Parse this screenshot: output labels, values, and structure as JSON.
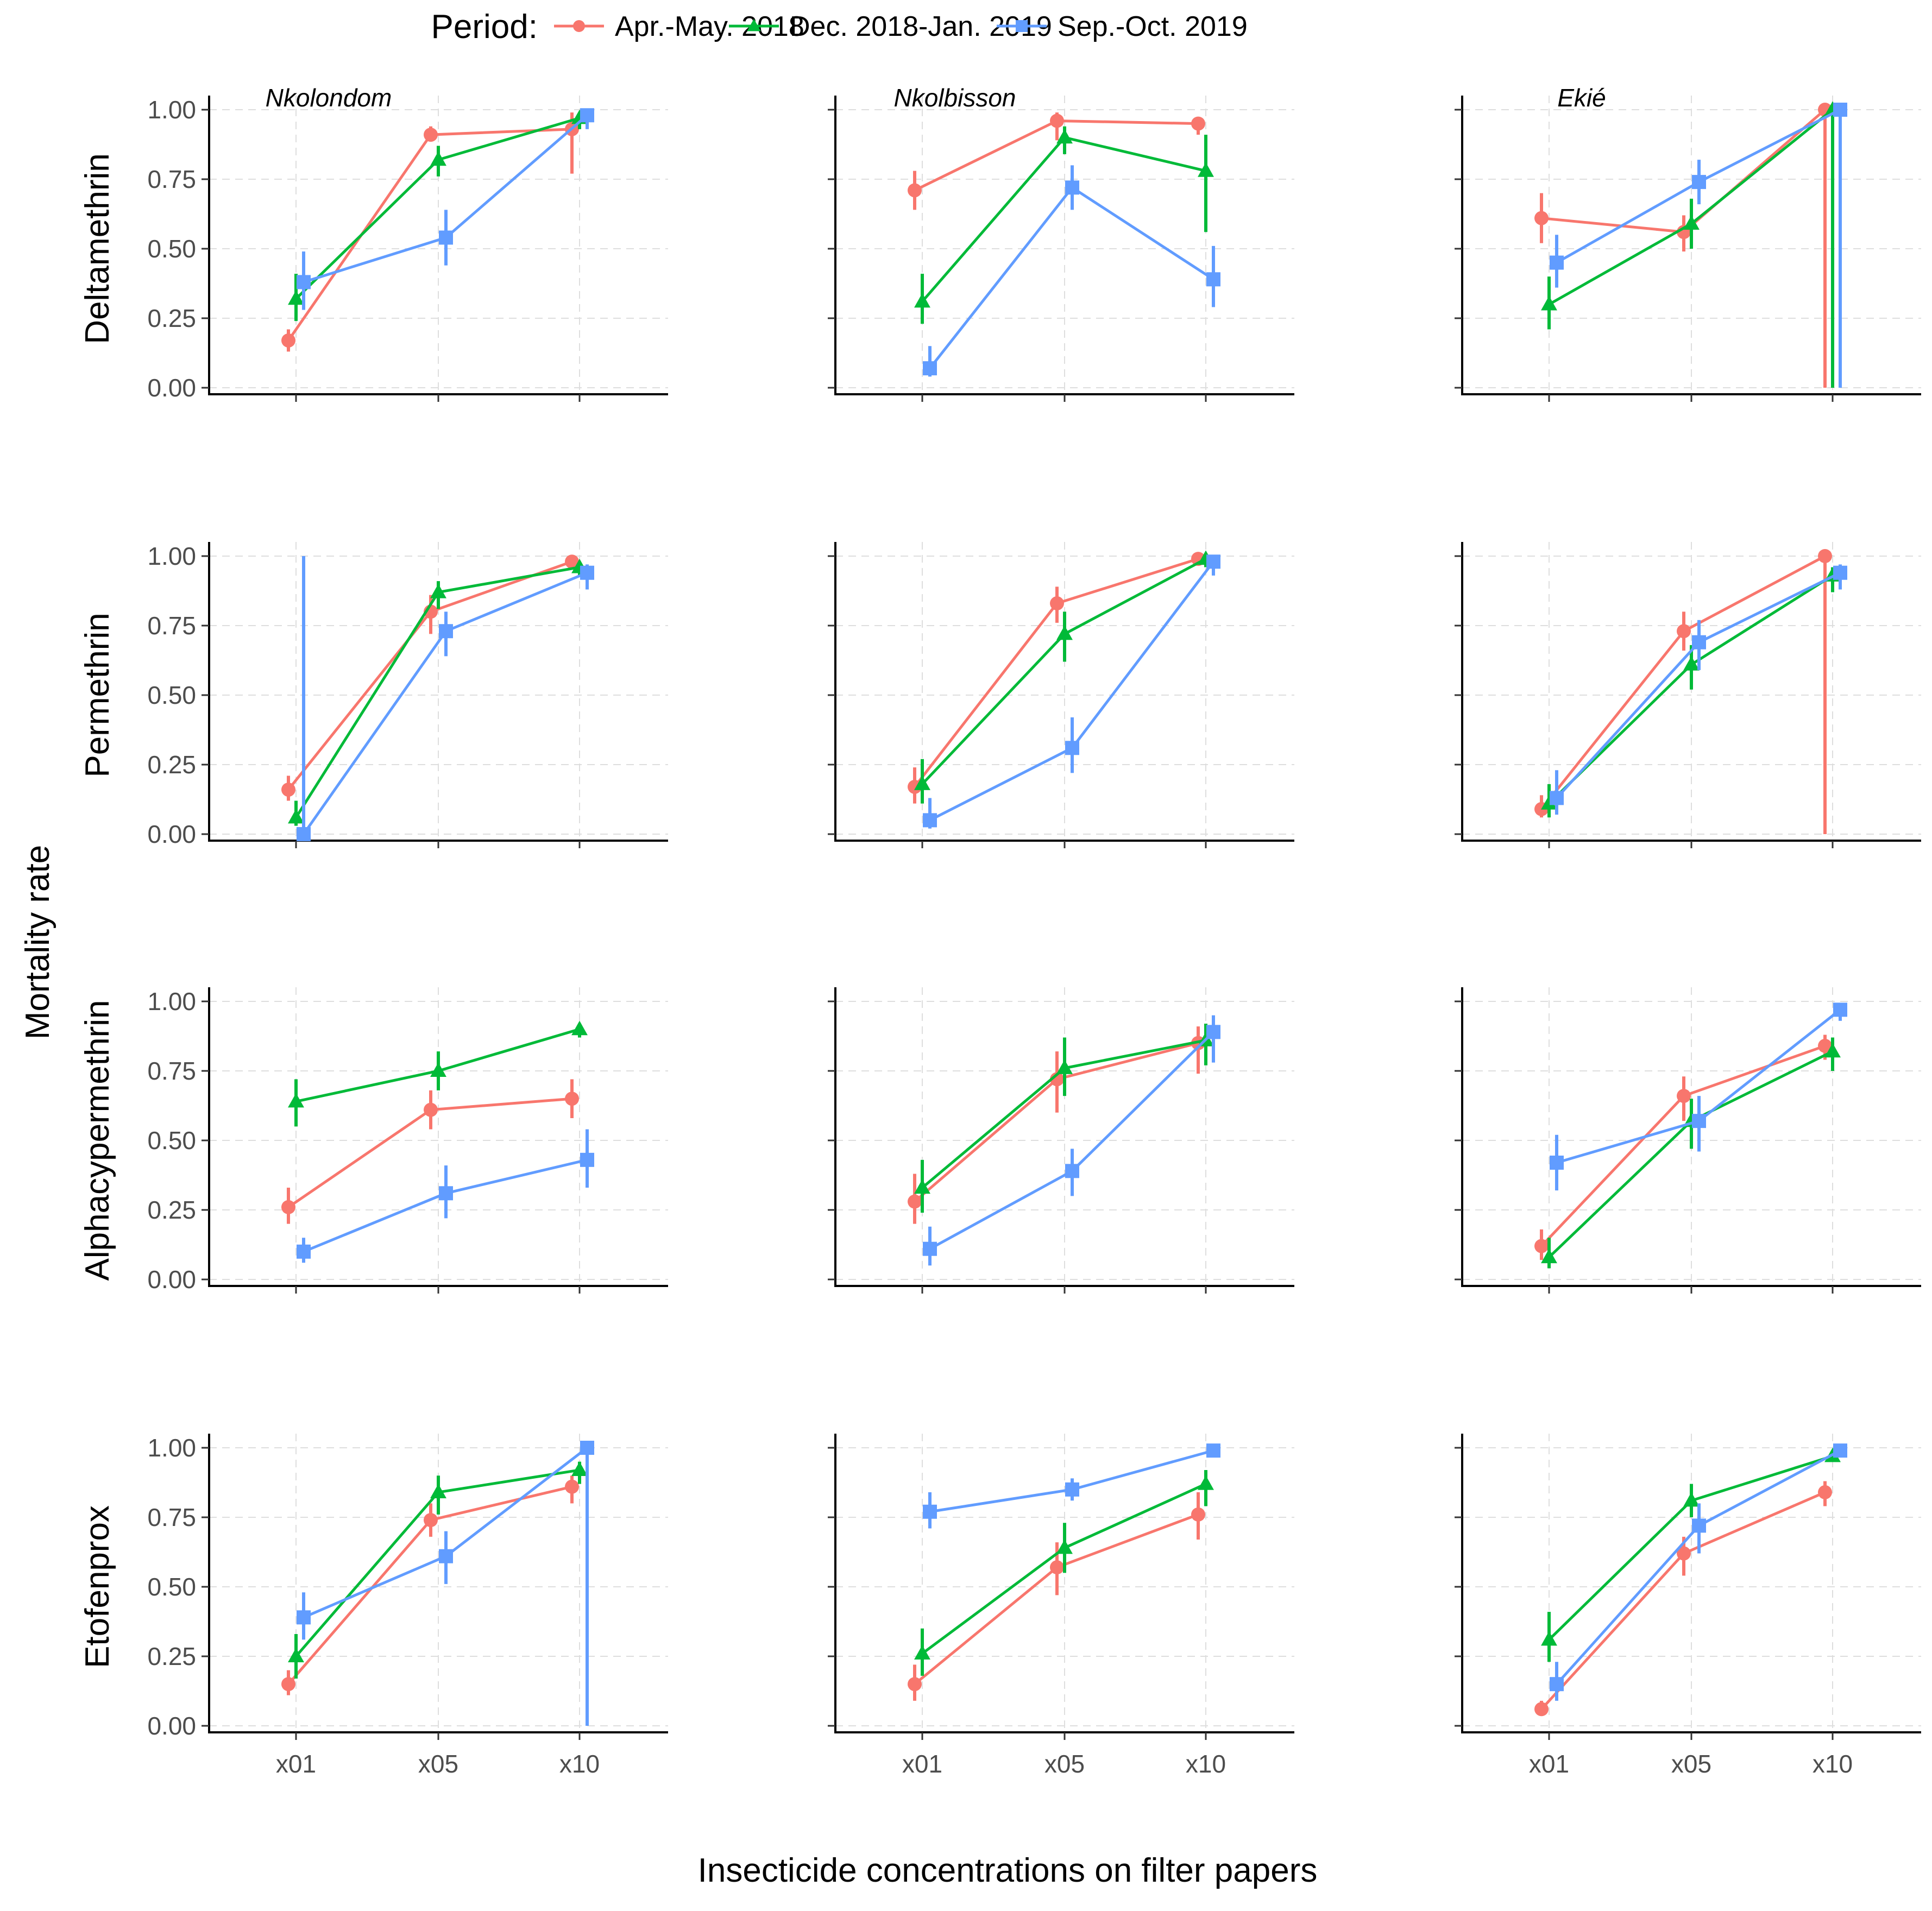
{
  "chart_data": {
    "type": "line",
    "legend": {
      "title": "Period:",
      "position": "top",
      "entries": [
        {
          "label": "Apr.-May. 2018",
          "color": "#F8766D",
          "shape": "circle"
        },
        {
          "label": "Dec. 2018-Jan. 2019",
          "color": "#00BA38",
          "shape": "triangle"
        },
        {
          "label": "Sep.-Oct. 2019",
          "color": "#619CFF",
          "shape": "square"
        }
      ]
    },
    "xlabel": "Insecticide concentrations on filter papers",
    "ylabel": "Mortality rate",
    "categories": [
      "x01",
      "x05",
      "x10"
    ],
    "ylim": [
      0,
      1
    ],
    "yticks": [
      "0.00",
      "0.25",
      "0.50",
      "0.75",
      "1.00"
    ],
    "columns": [
      "Nkolondom",
      "Nkolbisson",
      "Ekié"
    ],
    "rows": [
      "Deltamethrin",
      "Permethrin",
      "Alphacypermethrin",
      "Etofenprox"
    ],
    "panels": [
      {
        "row": "Deltamethrin",
        "column": "Nkolondom",
        "series": [
          {
            "name": "Apr.-May. 2018",
            "values": [
              0.17,
              0.91,
              0.93
            ],
            "lower": [
              0.13,
              0.89,
              0.77
            ],
            "upper": [
              0.21,
              0.94,
              0.99
            ]
          },
          {
            "name": "Dec. 2018-Jan. 2019",
            "values": [
              0.32,
              0.82,
              0.97
            ],
            "lower": [
              0.24,
              0.76,
              0.93
            ],
            "upper": [
              0.41,
              0.87,
              0.99
            ]
          },
          {
            "name": "Sep.-Oct. 2019",
            "values": [
              0.38,
              0.54,
              0.98
            ],
            "lower": [
              0.28,
              0.44,
              0.93
            ],
            "upper": [
              0.49,
              0.64,
              0.99
            ]
          }
        ]
      },
      {
        "row": "Deltamethrin",
        "column": "Nkolbisson",
        "series": [
          {
            "name": "Apr.-May. 2018",
            "values": [
              0.71,
              0.96,
              0.95
            ],
            "lower": [
              0.64,
              0.89,
              0.91
            ],
            "upper": [
              0.78,
              0.99,
              0.97
            ]
          },
          {
            "name": "Dec. 2018-Jan. 2019",
            "values": [
              0.31,
              0.9,
              0.78
            ],
            "lower": [
              0.23,
              0.84,
              0.56
            ],
            "upper": [
              0.41,
              0.94,
              0.91
            ]
          },
          {
            "name": "Sep.-Oct. 2019",
            "values": [
              0.07,
              0.72,
              0.39
            ],
            "lower": [
              0.04,
              0.64,
              0.29
            ],
            "upper": [
              0.15,
              0.8,
              0.51
            ]
          }
        ]
      },
      {
        "row": "Deltamethrin",
        "column": "Ekié",
        "series": [
          {
            "name": "Apr.-May. 2018",
            "values": [
              0.61,
              0.56,
              1.0
            ],
            "lower": [
              0.52,
              0.49,
              0.0
            ],
            "upper": [
              0.7,
              0.62,
              1.0
            ]
          },
          {
            "name": "Dec. 2018-Jan. 2019",
            "values": [
              0.3,
              0.59,
              1.0
            ],
            "lower": [
              0.21,
              0.5,
              0.0
            ],
            "upper": [
              0.4,
              0.68,
              1.0
            ]
          },
          {
            "name": "Sep.-Oct. 2019",
            "values": [
              0.45,
              0.74,
              1.0
            ],
            "lower": [
              0.36,
              0.66,
              0.0
            ],
            "upper": [
              0.55,
              0.82,
              1.0
            ]
          }
        ]
      },
      {
        "row": "Permethrin",
        "column": "Nkolondom",
        "series": [
          {
            "name": "Apr.-May. 2018",
            "values": [
              0.16,
              0.8,
              0.98
            ],
            "lower": [
              0.12,
              0.72,
              0.96
            ],
            "upper": [
              0.21,
              0.86,
              0.99
            ]
          },
          {
            "name": "Dec. 2018-Jan. 2019",
            "values": [
              0.06,
              0.87,
              0.96
            ],
            "lower": [
              0.03,
              0.81,
              0.93
            ],
            "upper": [
              0.12,
              0.91,
              0.98
            ]
          },
          {
            "name": "Sep.-Oct. 2019",
            "values": [
              0.0,
              0.73,
              0.94
            ],
            "lower": [
              0.0,
              0.64,
              0.88
            ],
            "upper": [
              1.0,
              0.8,
              0.97
            ]
          }
        ]
      },
      {
        "row": "Permethrin",
        "column": "Nkolbisson",
        "series": [
          {
            "name": "Apr.-May. 2018",
            "values": [
              0.17,
              0.83,
              0.99
            ],
            "lower": [
              0.11,
              0.76,
              0.97
            ],
            "upper": [
              0.24,
              0.89,
              1.0
            ]
          },
          {
            "name": "Dec. 2018-Jan. 2019",
            "values": [
              0.18,
              0.72,
              0.99
            ],
            "lower": [
              0.11,
              0.62,
              0.96
            ],
            "upper": [
              0.27,
              0.8,
              1.0
            ]
          },
          {
            "name": "Sep.-Oct. 2019",
            "values": [
              0.05,
              0.31,
              0.98
            ],
            "lower": [
              0.02,
              0.22,
              0.93
            ],
            "upper": [
              0.13,
              0.42,
              0.99
            ]
          }
        ]
      },
      {
        "row": "Permethrin",
        "column": "Ekié",
        "series": [
          {
            "name": "Apr.-May. 2018",
            "values": [
              0.09,
              0.73,
              1.0
            ],
            "lower": [
              0.06,
              0.66,
              0.0
            ],
            "upper": [
              0.14,
              0.8,
              1.0
            ]
          },
          {
            "name": "Dec. 2018-Jan. 2019",
            "values": [
              0.11,
              0.61,
              0.93
            ],
            "lower": [
              0.06,
              0.52,
              0.87
            ],
            "upper": [
              0.18,
              0.68,
              0.96
            ]
          },
          {
            "name": "Sep.-Oct. 2019",
            "values": [
              0.13,
              0.69,
              0.94
            ],
            "lower": [
              0.07,
              0.59,
              0.88
            ],
            "upper": [
              0.23,
              0.77,
              0.97
            ]
          }
        ]
      },
      {
        "row": "Alphacypermethrin",
        "column": "Nkolondom",
        "series": [
          {
            "name": "Apr.-May. 2018",
            "values": [
              0.26,
              0.61,
              0.65
            ],
            "lower": [
              0.2,
              0.54,
              0.58
            ],
            "upper": [
              0.33,
              0.68,
              0.72
            ]
          },
          {
            "name": "Dec. 2018-Jan. 2019",
            "values": [
              0.64,
              0.75,
              0.9
            ],
            "lower": [
              0.55,
              0.68,
              0.87
            ],
            "upper": [
              0.72,
              0.82,
              0.92
            ]
          },
          {
            "name": "Sep.-Oct. 2019",
            "values": [
              0.1,
              0.31,
              0.43
            ],
            "lower": [
              0.06,
              0.22,
              0.33
            ],
            "upper": [
              0.15,
              0.41,
              0.54
            ]
          }
        ]
      },
      {
        "row": "Alphacypermethrin",
        "column": "Nkolbisson",
        "series": [
          {
            "name": "Apr.-May. 2018",
            "values": [
              0.28,
              0.72,
              0.85
            ],
            "lower": [
              0.2,
              0.6,
              0.74
            ],
            "upper": [
              0.38,
              0.82,
              0.91
            ]
          },
          {
            "name": "Dec. 2018-Jan. 2019",
            "values": [
              0.33,
              0.76,
              0.86
            ],
            "lower": [
              0.24,
              0.66,
              0.77
            ],
            "upper": [
              0.43,
              0.87,
              0.92
            ]
          },
          {
            "name": "Sep.-Oct. 2019",
            "values": [
              0.11,
              0.39,
              0.89
            ],
            "lower": [
              0.05,
              0.3,
              0.78
            ],
            "upper": [
              0.19,
              0.47,
              0.95
            ]
          }
        ]
      },
      {
        "row": "Alphacypermethrin",
        "column": "Ekié",
        "series": [
          {
            "name": "Apr.-May. 2018",
            "values": [
              0.12,
              0.66,
              0.84
            ],
            "lower": [
              0.07,
              0.57,
              0.79
            ],
            "upper": [
              0.18,
              0.73,
              0.88
            ]
          },
          {
            "name": "Dec. 2018-Jan. 2019",
            "values": [
              0.08,
              0.57,
              0.82
            ],
            "lower": [
              0.04,
              0.47,
              0.75
            ],
            "upper": [
              0.15,
              0.65,
              0.87
            ]
          },
          {
            "name": "Sep.-Oct. 2019",
            "values": [
              0.42,
              0.57,
              0.97
            ],
            "lower": [
              0.32,
              0.46,
              0.93
            ],
            "upper": [
              0.52,
              0.66,
              0.98
            ]
          }
        ]
      },
      {
        "row": "Etofenprox",
        "column": "Nkolondom",
        "series": [
          {
            "name": "Apr.-May. 2018",
            "values": [
              0.15,
              0.74,
              0.86
            ],
            "lower": [
              0.11,
              0.68,
              0.8
            ],
            "upper": [
              0.2,
              0.8,
              0.9
            ]
          },
          {
            "name": "Dec. 2018-Jan. 2019",
            "values": [
              0.25,
              0.84,
              0.92
            ],
            "lower": [
              0.17,
              0.76,
              0.87
            ],
            "upper": [
              0.33,
              0.9,
              0.95
            ]
          },
          {
            "name": "Sep.-Oct. 2019",
            "values": [
              0.39,
              0.61,
              1.0
            ],
            "lower": [
              0.31,
              0.51,
              0.0
            ],
            "upper": [
              0.48,
              0.7,
              1.0
            ]
          }
        ]
      },
      {
        "row": "Etofenprox",
        "column": "Nkolbisson",
        "series": [
          {
            "name": "Apr.-May. 2018",
            "values": [
              0.15,
              0.57,
              0.76
            ],
            "lower": [
              0.09,
              0.47,
              0.67
            ],
            "upper": [
              0.22,
              0.66,
              0.84
            ]
          },
          {
            "name": "Dec. 2018-Jan. 2019",
            "values": [
              0.26,
              0.64,
              0.87
            ],
            "lower": [
              0.18,
              0.55,
              0.79
            ],
            "upper": [
              0.35,
              0.73,
              0.92
            ]
          },
          {
            "name": "Sep.-Oct. 2019",
            "values": [
              0.77,
              0.85,
              0.99
            ],
            "lower": [
              0.71,
              0.81,
              0.97
            ],
            "upper": [
              0.84,
              0.89,
              1.0
            ]
          }
        ]
      },
      {
        "row": "Etofenprox",
        "column": "Ekié",
        "series": [
          {
            "name": "Apr.-May. 2018",
            "values": [
              0.06,
              0.62,
              0.84
            ],
            "lower": [
              0.04,
              0.54,
              0.79
            ],
            "upper": [
              0.09,
              0.68,
              0.88
            ]
          },
          {
            "name": "Dec. 2018-Jan. 2019",
            "values": [
              0.31,
              0.81,
              0.97
            ],
            "lower": [
              0.23,
              0.75,
              0.95
            ],
            "upper": [
              0.41,
              0.87,
              0.99
            ]
          },
          {
            "name": "Sep.-Oct. 2019",
            "values": [
              0.15,
              0.72,
              0.99
            ],
            "lower": [
              0.09,
              0.62,
              0.97
            ],
            "upper": [
              0.23,
              0.8,
              1.0
            ]
          }
        ]
      }
    ]
  }
}
